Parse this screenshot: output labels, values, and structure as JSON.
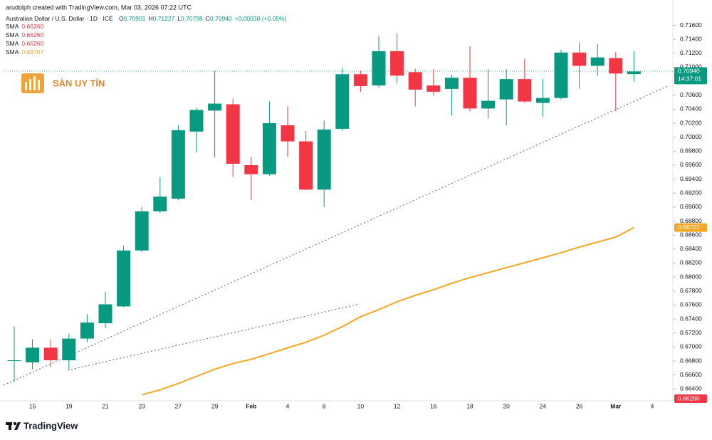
{
  "chart_data": {
    "type": "candlestick",
    "attribution": "arudolph created with TradingView.com, Mar 03, 2026 07:22 UTC",
    "title": "Australian Dollar / U.S. Dollar · 1D · ICE",
    "ohlc_legend": [
      {
        "key": "O",
        "label": "0.70901"
      },
      {
        "key": "H",
        "label": "0.71227"
      },
      {
        "key": "L",
        "label": "0.70798"
      },
      {
        "key": "C",
        "label": "0.70940"
      }
    ],
    "change_label": "+0.00038 (+0.05%)",
    "indicator_legend": [
      {
        "name": "SMA",
        "label": "0.66260",
        "color": "#f23645"
      },
      {
        "name": "SMA",
        "label": "0.66260",
        "color": "#f23645"
      },
      {
        "name": "SMA",
        "label": "0.66260",
        "color": "#f23645"
      },
      {
        "name": "SMA",
        "label": "0.68707",
        "color": "#f5a623"
      }
    ],
    "watermark": "SÀN UY TÍN",
    "brand": "TradingView",
    "up_color": "#089981",
    "down_color": "#f23645",
    "categories": [
      null,
      "15",
      null,
      "19",
      null,
      "21",
      null,
      "23",
      null,
      "27",
      null,
      "29",
      null,
      "Feb",
      null,
      "4",
      null,
      "6",
      null,
      "10",
      null,
      "12",
      null,
      "16",
      null,
      "18",
      null,
      "20",
      null,
      "24",
      null,
      "26",
      null,
      "Mar",
      null,
      "4"
    ],
    "open": [
      0.668,
      0.6678,
      0.6699,
      0.6681,
      0.6712,
      0.6734,
      0.6758,
      0.6838,
      0.6894,
      0.6912,
      0.7008,
      0.7038,
      0.7047,
      0.696,
      0.6947,
      0.7017,
      0.6994,
      0.6925,
      0.7012,
      0.709,
      0.7074,
      0.7123,
      0.7093,
      0.7074,
      0.7069,
      0.7085,
      0.7041,
      0.7054,
      0.7083,
      0.7049,
      0.7056,
      0.7121,
      0.7102,
      0.7113,
      0.70901,
      null
    ],
    "high": [
      0.6729,
      0.6711,
      0.6711,
      0.6719,
      0.6747,
      0.6779,
      0.6845,
      0.69,
      0.6943,
      0.7017,
      0.7042,
      0.7095,
      0.7055,
      0.6972,
      0.7051,
      0.7044,
      0.7009,
      0.7024,
      0.7099,
      0.7095,
      0.7144,
      0.7149,
      0.7098,
      0.7097,
      0.7089,
      0.713,
      0.7097,
      0.7097,
      0.7112,
      0.7083,
      0.7125,
      0.7136,
      0.7133,
      0.7122,
      0.71227,
      null
    ],
    "low": [
      0.665,
      0.6668,
      0.6671,
      0.6668,
      0.6707,
      0.6727,
      0.6757,
      0.6836,
      0.6892,
      0.691,
      0.6978,
      0.6971,
      0.6943,
      0.691,
      0.6945,
      0.6972,
      0.6924,
      0.69,
      0.7009,
      0.7065,
      0.7071,
      0.7077,
      0.7044,
      0.706,
      0.7031,
      0.7037,
      0.7027,
      0.7017,
      0.7049,
      0.7029,
      0.7054,
      0.7069,
      0.7088,
      0.7037,
      0.70798,
      null
    ],
    "close": [
      0.6681,
      0.6699,
      0.6681,
      0.6712,
      0.6735,
      0.6761,
      0.6838,
      0.6894,
      0.6915,
      0.701,
      0.7039,
      0.7048,
      0.6962,
      0.6947,
      0.702,
      0.6994,
      0.6925,
      0.7011,
      0.709,
      0.7073,
      0.7123,
      0.7088,
      0.7068,
      0.7065,
      0.7085,
      0.7041,
      0.7052,
      0.7083,
      0.7051,
      0.7056,
      0.7121,
      0.7102,
      0.7114,
      0.7091,
      0.7094,
      null
    ],
    "overlays": [
      {
        "name": "SMA",
        "color": "#f5a623",
        "values": [
          null,
          null,
          null,
          null,
          null,
          null,
          null,
          0.66316,
          0.66387,
          0.66478,
          0.6658,
          0.66682,
          0.66763,
          0.66824,
          0.66905,
          0.66987,
          0.67068,
          0.67169,
          0.67291,
          0.67433,
          0.67535,
          0.67647,
          0.67738,
          0.67819,
          0.67911,
          0.67992,
          0.68063,
          0.68134,
          0.68205,
          0.68276,
          0.68348,
          0.68429,
          0.685,
          0.68571,
          0.68707,
          null
        ]
      }
    ],
    "price_labels": [
      {
        "value": 0.7094,
        "label": "0.70940",
        "sub": "14:37:01",
        "color": "#089981"
      },
      {
        "value": 0.68707,
        "label": "0.68707",
        "color": "#f5a623"
      },
      {
        "value": 0.6626,
        "label": "0.66260",
        "color": "#f23645"
      }
    ],
    "ylim": [
      0.6623,
      0.7188
    ],
    "yticks": [
      {
        "value": 0.664,
        "label": "0.66400"
      },
      {
        "value": 0.666,
        "label": "0.66600"
      },
      {
        "value": 0.668,
        "label": "0.66800"
      },
      {
        "value": 0.67,
        "label": "0.67000"
      },
      {
        "value": 0.672,
        "label": "0.67200"
      },
      {
        "value": 0.674,
        "label": "0.67400"
      },
      {
        "value": 0.676,
        "label": "0.67600"
      },
      {
        "value": 0.678,
        "label": "0.67800"
      },
      {
        "value": 0.68,
        "label": "0.68000"
      },
      {
        "value": 0.682,
        "label": "0.68200"
      },
      {
        "value": 0.684,
        "label": "0.68400"
      },
      {
        "value": 0.686,
        "label": "0.68600"
      },
      {
        "value": 0.688,
        "label": "0.68800"
      },
      {
        "value": 0.69,
        "label": "0.69000"
      },
      {
        "value": 0.692,
        "label": "0.69200"
      },
      {
        "value": 0.694,
        "label": "0.69400"
      },
      {
        "value": 0.696,
        "label": "0.69600"
      },
      {
        "value": 0.698,
        "label": "0.69800"
      },
      {
        "value": 0.7,
        "label": "0.70000"
      },
      {
        "value": 0.702,
        "label": "0.70200"
      },
      {
        "value": 0.704,
        "label": "0.70400"
      },
      {
        "value": 0.706,
        "label": "0.70600"
      },
      {
        "value": 0.71,
        "label": "0.71000"
      },
      {
        "value": 0.712,
        "label": "0.71200"
      },
      {
        "value": 0.714,
        "label": "0.71400"
      },
      {
        "value": 0.716,
        "label": "0.71600"
      }
    ],
    "grid": false
  }
}
